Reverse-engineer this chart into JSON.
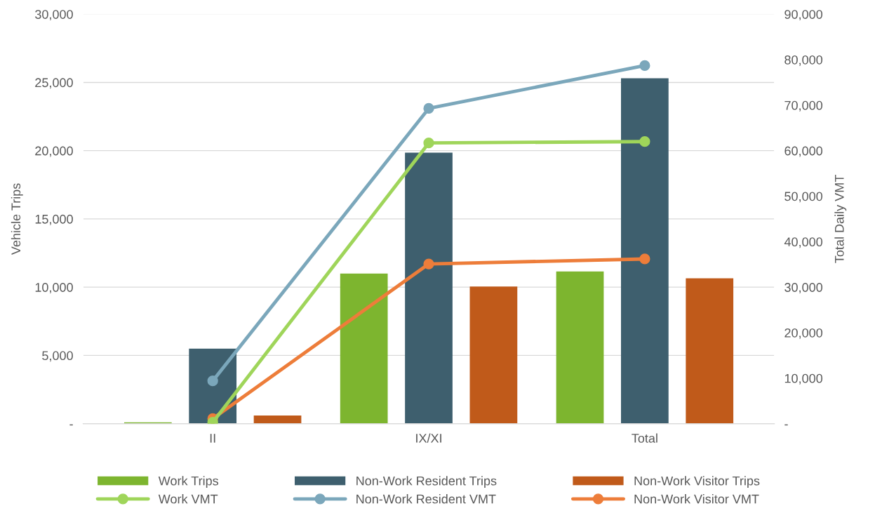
{
  "chart_data": {
    "type": "bar",
    "ylabel": "Vehicle Trips",
    "y2label": "Total Daily VMT",
    "categories": [
      "II",
      "IX/XI",
      "Total"
    ],
    "series": [
      {
        "name": "Work Trips",
        "color": "#7db52f",
        "values": [
          100,
          11000,
          11150
        ]
      },
      {
        "name": "Non-Work Resident Trips",
        "color": "#3e5f6e",
        "values": [
          5500,
          19850,
          25300
        ]
      },
      {
        "name": "Non-Work Visitor Trips",
        "color": "#c05a1a",
        "values": [
          600,
          10050,
          10650
        ]
      },
      {
        "name": "Work VMT",
        "type": "line",
        "axis": "y2",
        "color": "#9fd55a",
        "values": [
          300,
          61700,
          62000
        ]
      },
      {
        "name": "Non-Work Resident VMT",
        "type": "line",
        "axis": "y2",
        "color": "#7ba7bb",
        "values": [
          9400,
          69300,
          78700
        ]
      },
      {
        "name": "Non-Work Visitor VMT",
        "type": "line",
        "axis": "y2",
        "color": "#ed7d3a",
        "values": [
          1100,
          35100,
          36200
        ]
      }
    ],
    "ylim": [
      0,
      30000
    ],
    "yticks": [
      {
        "value": 0,
        "label": "-"
      },
      {
        "value": 5000,
        "label": "5,000"
      },
      {
        "value": 10000,
        "label": "10,000"
      },
      {
        "value": 15000,
        "label": "15,000"
      },
      {
        "value": 20000,
        "label": "20,000"
      },
      {
        "value": 25000,
        "label": "25,000"
      },
      {
        "value": 30000,
        "label": "30,000"
      }
    ],
    "y2lim": [
      0,
      90000
    ],
    "y2ticks": [
      {
        "value": 0,
        "label": "-"
      },
      {
        "value": 10000,
        "label": "10,000"
      },
      {
        "value": 20000,
        "label": "20,000"
      },
      {
        "value": 30000,
        "label": "30,000"
      },
      {
        "value": 40000,
        "label": "40,000"
      },
      {
        "value": 50000,
        "label": "50,000"
      },
      {
        "value": 60000,
        "label": "60,000"
      },
      {
        "value": 70000,
        "label": "70,000"
      },
      {
        "value": 80000,
        "label": "80,000"
      },
      {
        "value": 90000,
        "label": "90,000"
      }
    ],
    "grid": "y",
    "legend": "bottom",
    "marker": "circle",
    "line_style": "solid"
  }
}
